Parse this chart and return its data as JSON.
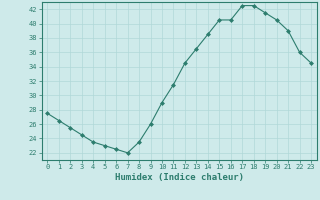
{
  "x": [
    0,
    1,
    2,
    3,
    4,
    5,
    6,
    7,
    8,
    9,
    10,
    11,
    12,
    13,
    14,
    15,
    16,
    17,
    18,
    19,
    20,
    21,
    22,
    23
  ],
  "y": [
    27.5,
    26.5,
    25.5,
    24.5,
    23.5,
    23.0,
    22.5,
    22.0,
    23.5,
    26.0,
    29.0,
    31.5,
    34.5,
    36.5,
    38.5,
    40.5,
    40.5,
    42.5,
    42.5,
    41.5,
    40.5,
    39.0,
    36.0,
    34.5
  ],
  "xlim": [
    -0.5,
    23.5
  ],
  "ylim": [
    21,
    43
  ],
  "yticks": [
    22,
    24,
    26,
    28,
    30,
    32,
    34,
    36,
    38,
    40,
    42
  ],
  "xticks": [
    0,
    1,
    2,
    3,
    4,
    5,
    6,
    7,
    8,
    9,
    10,
    11,
    12,
    13,
    14,
    15,
    16,
    17,
    18,
    19,
    20,
    21,
    22,
    23
  ],
  "xlabel": "Humidex (Indice chaleur)",
  "line_color": "#2d7d6e",
  "marker": "D",
  "marker_size": 2.0,
  "bg_color": "#ceeaea",
  "grid_color": "#b0d8d8",
  "tick_label_color": "#2d7d6e",
  "xlabel_color": "#2d7d6e"
}
